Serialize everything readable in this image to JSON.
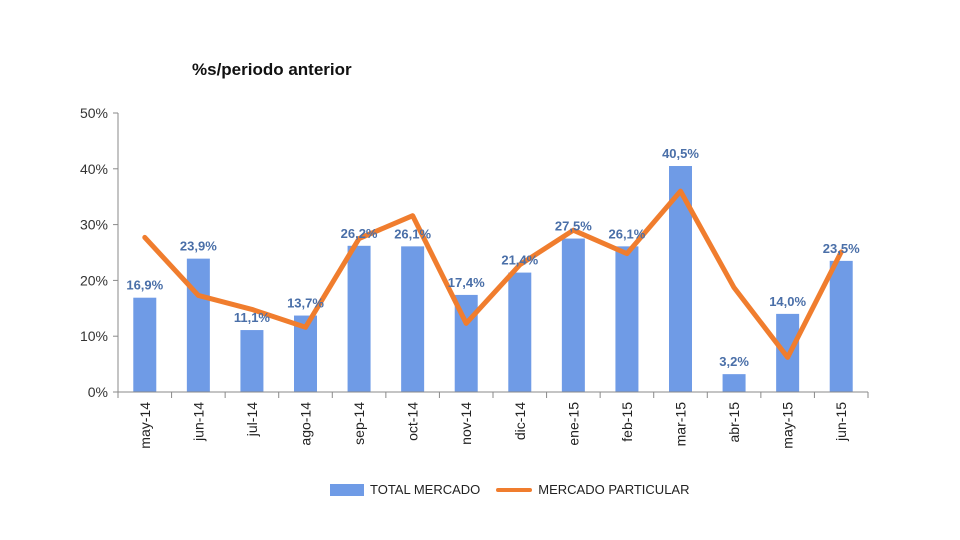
{
  "chart_data": {
    "type": "bar",
    "title": "%s/periodo anterior",
    "categories": [
      "may-14",
      "jun-14",
      "jul-14",
      "ago-14",
      "sep-14",
      "oct-14",
      "nov-14",
      "dic-14",
      "ene-15",
      "feb-15",
      "mar-15",
      "abr-15",
      "may-15",
      "jun-15"
    ],
    "yticks": [
      "0%",
      "10%",
      "20%",
      "30%",
      "40%",
      "50%"
    ],
    "ylim": [
      0,
      50
    ],
    "grid": false,
    "legend_position": "bottom",
    "series": [
      {
        "name": "TOTAL MERCADO",
        "type": "bar",
        "color": "#6f9be6",
        "values": [
          16.9,
          23.9,
          11.1,
          13.7,
          26.2,
          26.1,
          17.4,
          21.4,
          27.5,
          26.1,
          40.5,
          3.2,
          14.0,
          23.5
        ],
        "labels": [
          "16,9%",
          "23,9%",
          "11,1%",
          "13,7%",
          "26,2%",
          "26,1%",
          "17,4%",
          "21,4%",
          "27,5%",
          "26,1%",
          "40,5%",
          "3,2%",
          "14,0%",
          "23,5%"
        ]
      },
      {
        "name": "MERCADO PARTICULAR",
        "type": "line",
        "color": "#f07d2e",
        "values": [
          27.7,
          17.3,
          14.8,
          11.6,
          27.5,
          31.6,
          12.3,
          22.8,
          29.0,
          24.8,
          36.0,
          18.7,
          6.2,
          25.1
        ]
      }
    ],
    "label_color": "#4a6fa8"
  }
}
